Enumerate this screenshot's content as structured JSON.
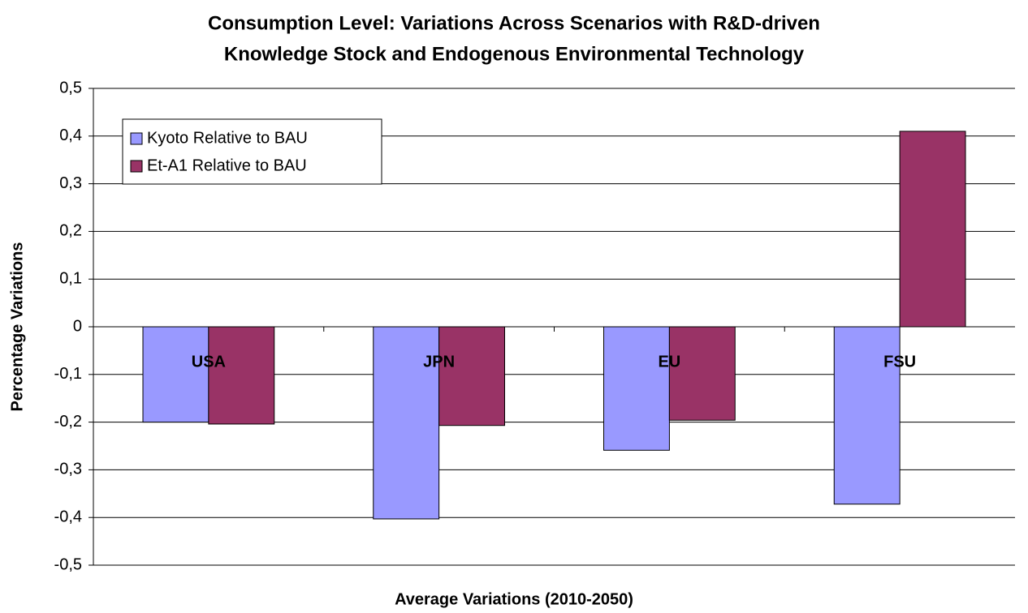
{
  "chart_data": {
    "type": "bar",
    "title": [
      "Consumption Level: Variations Across Scenarios with R&D-driven",
      "Knowledge Stock and Endogenous Environmental Technology"
    ],
    "x_label": "Average Variations (2010-2050)",
    "y_label": "Percentage Variations",
    "categories": [
      "USA",
      "JPN",
      "EU",
      "FSU"
    ],
    "series": [
      {
        "name": "Kyoto Relative to BAU",
        "color": "#9999ff",
        "values": [
          -0.2,
          -0.403,
          -0.259,
          -0.372
        ]
      },
      {
        "name": "Et-A1 Relative to BAU",
        "color": "#993366",
        "values": [
          -0.204,
          -0.207,
          -0.196,
          0.41
        ]
      }
    ],
    "ylim": [
      -0.5,
      0.5
    ],
    "yticks": [
      {
        "value": -0.5,
        "label": "-0,5"
      },
      {
        "value": -0.4,
        "label": "-0,4"
      },
      {
        "value": -0.3,
        "label": "-0,3"
      },
      {
        "value": -0.2,
        "label": "-0,2"
      },
      {
        "value": -0.1,
        "label": "-0,1"
      },
      0,
      {
        "value": 0.1,
        "label": "0,1"
      },
      {
        "value": 0.2,
        "label": "0,2"
      },
      {
        "value": 0.3,
        "label": "0,3"
      },
      {
        "value": 0.4,
        "label": "0,4"
      },
      {
        "value": 0.5,
        "label": "0,5"
      }
    ],
    "grid": true,
    "legend": "upper left"
  }
}
